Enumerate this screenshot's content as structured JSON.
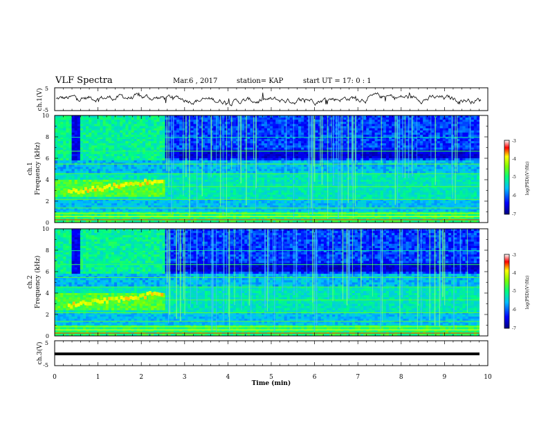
{
  "header": {
    "title": "VLF Spectra",
    "date": "Mar.6  , 2017",
    "station": "station= KAP",
    "start_ut": "start  UT  =   17: 0  : 1"
  },
  "chart_data": [
    {
      "type": "line",
      "name": "waveform-ch1",
      "ylabel": "ch.1(V)",
      "yticks": [
        "5",
        "-5"
      ],
      "ylim": [
        -5,
        5
      ],
      "xlim": [
        0,
        10
      ]
    },
    {
      "type": "heatmap",
      "name": "spectrogram-ch1",
      "ylabel_line1": "ch.1",
      "ylabel_line2": "Frequency  (kHz)",
      "yticks": [
        "0",
        "2",
        "4",
        "6",
        "8",
        "10"
      ],
      "ylim": [
        0,
        10
      ],
      "xlim": [
        0,
        10
      ],
      "colorbar": {
        "label": "log(PSD)(V²/Hz)",
        "ticks": [
          "-3",
          "-4",
          "-5",
          "-6",
          "-7"
        ],
        "range": [
          -7,
          -3
        ]
      }
    },
    {
      "type": "heatmap",
      "name": "spectrogram-ch2",
      "ylabel_line1": "ch.2",
      "ylabel_line2": "Frequency  (kHz)",
      "yticks": [
        "0",
        "2",
        "4",
        "6",
        "8",
        "10"
      ],
      "ylim": [
        0,
        10
      ],
      "xlim": [
        0,
        10
      ],
      "colorbar": {
        "label": "log(PSD)(V²/Hz)",
        "ticks": [
          "-3",
          "-4",
          "-5",
          "-6",
          "-7"
        ],
        "range": [
          -7,
          -3
        ]
      }
    },
    {
      "type": "line",
      "name": "waveform-ch3",
      "ylabel": "ch.3(V)",
      "yticks": [
        "5",
        "-5"
      ],
      "ylim": [
        -5,
        5
      ],
      "xlim": [
        0,
        10
      ],
      "xlabel": "Time  (min)",
      "xticks": [
        "0",
        "1",
        "2",
        "3",
        "4",
        "5",
        "6",
        "7",
        "8",
        "9",
        "10"
      ]
    }
  ],
  "colors": {
    "waveform": "#000000",
    "axes": "#000000"
  }
}
